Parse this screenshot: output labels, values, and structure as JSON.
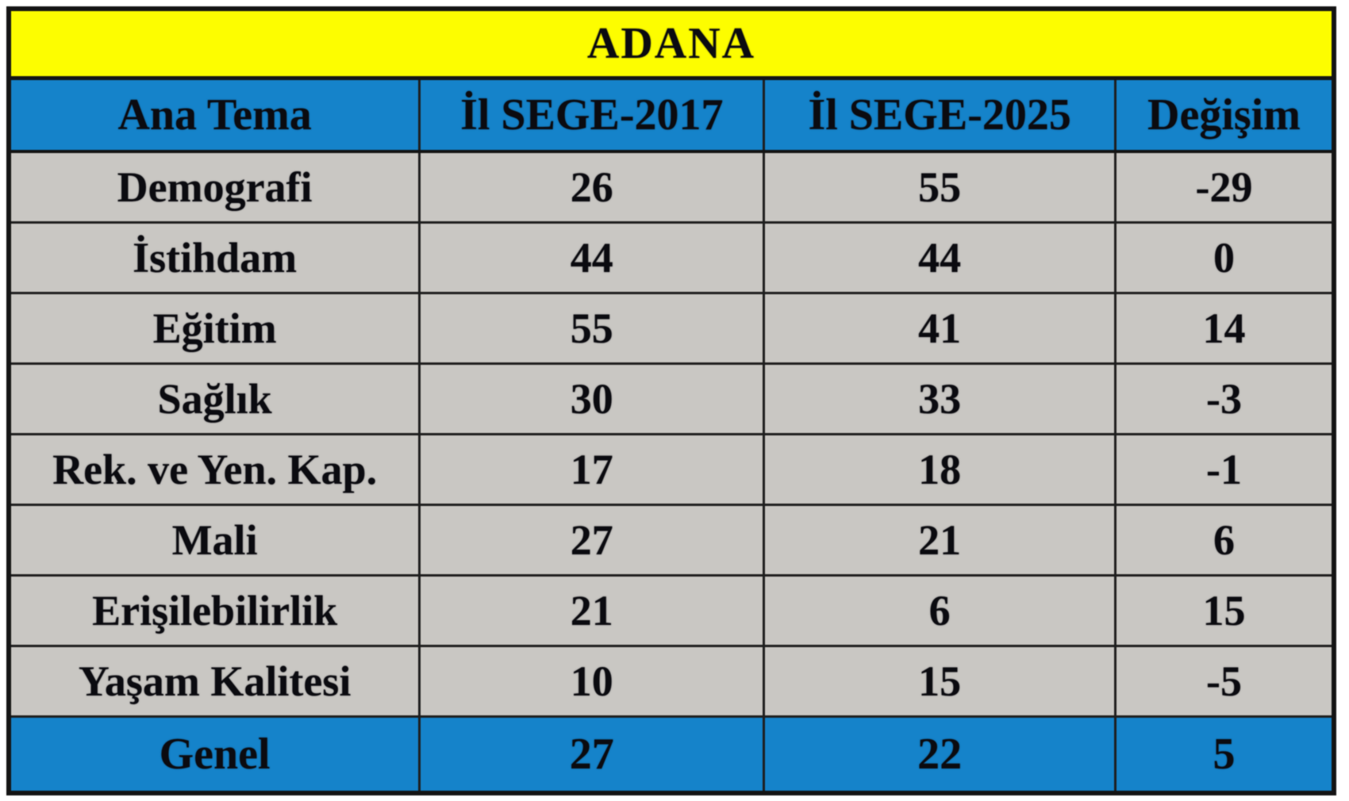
{
  "chart_data": {
    "type": "table",
    "title": "ADANA",
    "columns": [
      "Ana Tema",
      "İl SEGE-2017",
      "İl SEGE-2025",
      "Değişim"
    ],
    "rows": [
      [
        "Demografi",
        "26",
        "55",
        "-29"
      ],
      [
        "İstihdam",
        "44",
        "44",
        "0"
      ],
      [
        "Eğitim",
        "55",
        "41",
        "14"
      ],
      [
        "Sağlık",
        "30",
        "33",
        "-3"
      ],
      [
        "Rek. ve Yen. Kap.",
        "17",
        "18",
        "-1"
      ],
      [
        "Mali",
        "27",
        "21",
        "6"
      ],
      [
        "Erişilebilirlik",
        "21",
        "6",
        "15"
      ],
      [
        "Yaşam Kalitesi",
        "10",
        "15",
        "-5"
      ]
    ],
    "footer": [
      "Genel",
      "27",
      "22",
      "5"
    ]
  },
  "colors": {
    "title_bg": "#fdfd00",
    "header_bg": "#1583ca",
    "footer_bg": "#1583ca",
    "row_bg": "#c9c7c3",
    "border": "#141414",
    "text": "#0b0b10"
  }
}
